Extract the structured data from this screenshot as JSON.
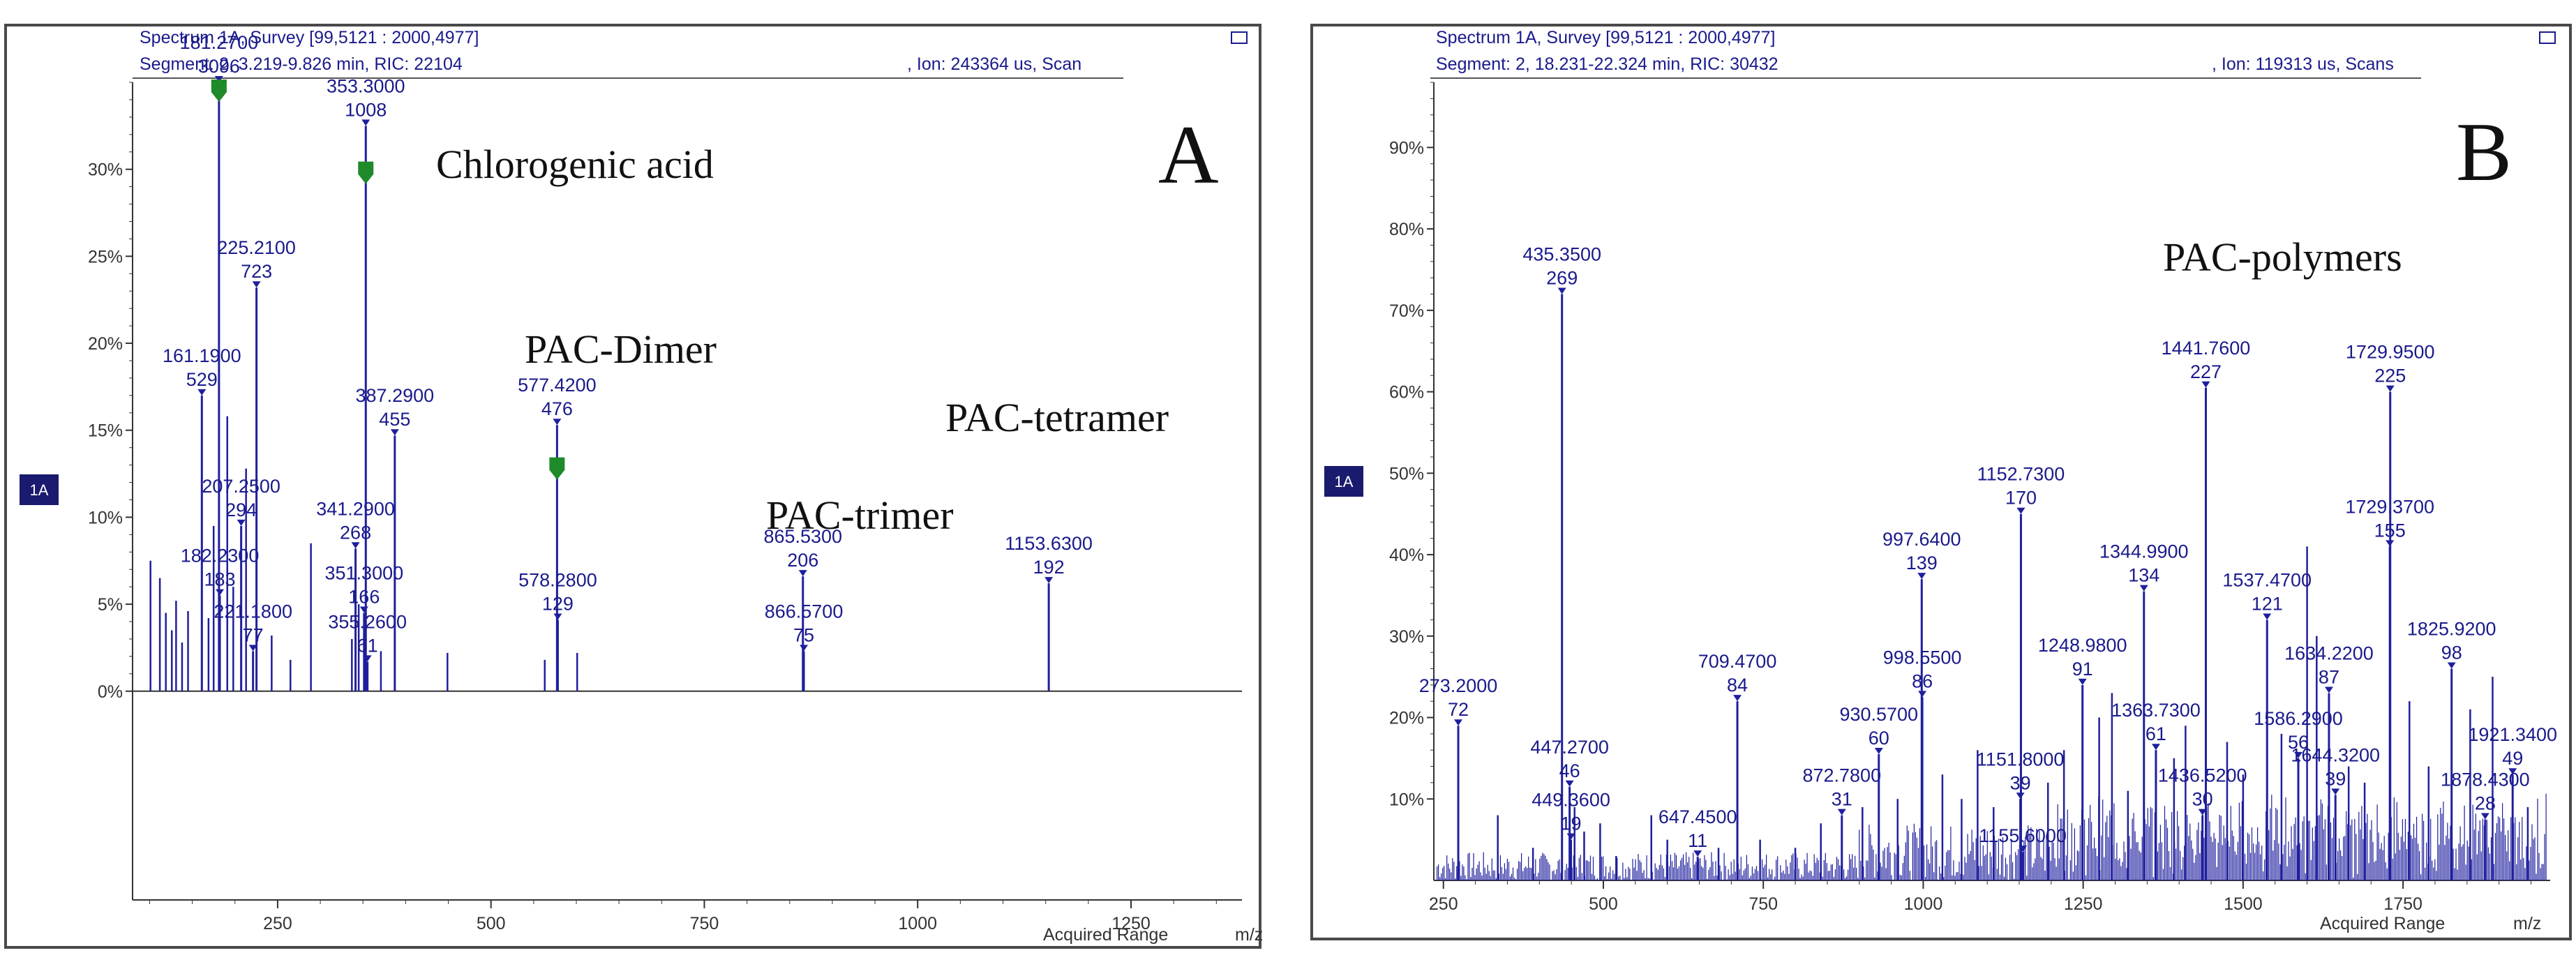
{
  "colors": {
    "peak": "#1f1f9e",
    "marker": "#1f8a2a",
    "badge_bg": "#1a1a6e",
    "frame": "#444444"
  },
  "panels": [
    {
      "letter": "A",
      "badge": "1A",
      "header_line1": "Spectrum 1A, Survey [99,5121 : 2000,4977]",
      "header_line2": "Segment: 2, 3.219-9.826 min, RIC: 22104",
      "header_line2_right": ", Ion: 243364 us, Scan",
      "x_footer": "Acquired Range",
      "x_unit": "m/z",
      "annotations": [
        "Chlorogenic acid",
        "PAC-Dimer",
        "PAC-tetramer",
        "PAC-trimer"
      ]
    },
    {
      "letter": "B",
      "badge": "1A",
      "header_line1": "Spectrum 1A, Survey [99,5121 : 2000,4977]",
      "header_line2": "Segment: 2, 18.231-22.324 min, RIC: 30432",
      "header_line2_right": ", Ion: 119313 us, Scans",
      "x_footer": "Acquired Range",
      "x_unit": "m/z",
      "annotations": [
        "PAC-polymers"
      ]
    }
  ],
  "chart_data": [
    {
      "type": "bar",
      "subtype": "mass-spectrum stick plot",
      "xlabel": "m/z",
      "ylabel": "",
      "xlim": [
        80,
        1380
      ],
      "ylim": [
        -12,
        35
      ],
      "x_ticks": [
        250,
        500,
        750,
        1000,
        1250
      ],
      "x_tick_labels": [
        "250",
        "500",
        "750",
        "1000",
        "1250"
      ],
      "y_ticks": [
        0,
        5,
        10,
        15,
        20,
        25,
        30
      ],
      "y_tick_labels": [
        "0%",
        "5%",
        "10%",
        "15%",
        "20%",
        "25%",
        "30%"
      ],
      "grid": false,
      "marker_positions": [
        181.27,
        353.3,
        577.42
      ],
      "labeled_peaks": [
        {
          "mz": 161.19,
          "intensity": 17.0,
          "label": "161.1900",
          "count": "529"
        },
        {
          "mz": 181.27,
          "intensity": 35.0,
          "label": "181.2700",
          "count": "3096"
        },
        {
          "mz": 182.23,
          "intensity": 5.5,
          "label": "182.2300",
          "count": "183"
        },
        {
          "mz": 207.25,
          "intensity": 9.5,
          "label": "207.2500",
          "count": "294"
        },
        {
          "mz": 221.18,
          "intensity": 2.3,
          "label": "221.1800",
          "count": "77"
        },
        {
          "mz": 225.21,
          "intensity": 23.2,
          "label": "225.2100",
          "count": "723"
        },
        {
          "mz": 341.29,
          "intensity": 8.2,
          "label": "341.2900",
          "count": "268"
        },
        {
          "mz": 351.3,
          "intensity": 4.5,
          "label": "351.3000",
          "count": "166"
        },
        {
          "mz": 353.3,
          "intensity": 32.5,
          "label": "353.3000",
          "count": "1008"
        },
        {
          "mz": 355.26,
          "intensity": 1.7,
          "label": "355.2600",
          "count": "61"
        },
        {
          "mz": 387.29,
          "intensity": 14.7,
          "label": "387.2900",
          "count": "455"
        },
        {
          "mz": 577.42,
          "intensity": 15.3,
          "label": "577.4200",
          "count": "476"
        },
        {
          "mz": 578.28,
          "intensity": 4.1,
          "label": "578.2800",
          "count": "129"
        },
        {
          "mz": 865.53,
          "intensity": 6.6,
          "label": "865.5300",
          "count": "206"
        },
        {
          "mz": 866.57,
          "intensity": 2.3,
          "label": "866.5700",
          "count": "75"
        },
        {
          "mz": 1153.63,
          "intensity": 6.2,
          "label": "1153.6300",
          "count": "192"
        }
      ],
      "minor_peaks": [
        {
          "mz": 101,
          "intensity": 7.5
        },
        {
          "mz": 112,
          "intensity": 6.5
        },
        {
          "mz": 119,
          "intensity": 4.5
        },
        {
          "mz": 126,
          "intensity": 3.5
        },
        {
          "mz": 131,
          "intensity": 5.2
        },
        {
          "mz": 138,
          "intensity": 2.8
        },
        {
          "mz": 145,
          "intensity": 4.6
        },
        {
          "mz": 169,
          "intensity": 4.2
        },
        {
          "mz": 175,
          "intensity": 9.5
        },
        {
          "mz": 191,
          "intensity": 15.8
        },
        {
          "mz": 198,
          "intensity": 6.0
        },
        {
          "mz": 213,
          "intensity": 12.8
        },
        {
          "mz": 243,
          "intensity": 3.2
        },
        {
          "mz": 265,
          "intensity": 1.8
        },
        {
          "mz": 289,
          "intensity": 8.5
        },
        {
          "mz": 337,
          "intensity": 3.0
        },
        {
          "mz": 345,
          "intensity": 5.0
        },
        {
          "mz": 371,
          "intensity": 2.3
        },
        {
          "mz": 449,
          "intensity": 2.2
        },
        {
          "mz": 563,
          "intensity": 1.8
        },
        {
          "mz": 601,
          "intensity": 2.2
        }
      ]
    },
    {
      "type": "bar",
      "subtype": "mass-spectrum stick plot",
      "xlabel": "m/z",
      "ylabel": "",
      "xlim": [
        235,
        1980
      ],
      "ylim": [
        0,
        98
      ],
      "x_ticks": [
        250,
        500,
        750,
        1000,
        1250,
        1500,
        1750
      ],
      "x_tick_labels": [
        "250",
        "500",
        "750",
        "1000",
        "1250",
        "1500",
        "1750"
      ],
      "y_ticks": [
        10,
        20,
        30,
        40,
        50,
        60,
        70,
        80,
        90
      ],
      "y_tick_labels": [
        "10%",
        "20%",
        "30%",
        "40%",
        "50%",
        "60%",
        "70%",
        "80%",
        "90%"
      ],
      "grid": false,
      "labeled_peaks": [
        {
          "mz": 273.2,
          "intensity": 19.0,
          "label": "273.2000",
          "count": "72"
        },
        {
          "mz": 435.35,
          "intensity": 72.0,
          "label": "435.3500",
          "count": "269"
        },
        {
          "mz": 447.27,
          "intensity": 11.5,
          "label": "447.2700",
          "count": "46"
        },
        {
          "mz": 449.36,
          "intensity": 5.0,
          "label": "449.3600",
          "count": "19"
        },
        {
          "mz": 647.45,
          "intensity": 2.9,
          "label": "647.4500",
          "count": "11"
        },
        {
          "mz": 709.47,
          "intensity": 22.0,
          "label": "709.4700",
          "count": "84"
        },
        {
          "mz": 872.78,
          "intensity": 8.0,
          "label": "872.7800",
          "count": "31"
        },
        {
          "mz": 930.57,
          "intensity": 15.5,
          "label": "930.5700",
          "count": "60"
        },
        {
          "mz": 997.64,
          "intensity": 37.0,
          "label": "997.6400",
          "count": "139"
        },
        {
          "mz": 998.55,
          "intensity": 22.5,
          "label": "998.5500",
          "count": "86"
        },
        {
          "mz": 1151.8,
          "intensity": 10.0,
          "label": "1151.8000",
          "count": "39"
        },
        {
          "mz": 1152.73,
          "intensity": 45.0,
          "label": "1152.7300",
          "count": "170"
        },
        {
          "mz": 1155.6,
          "intensity": 3.5,
          "label": "1155.6000",
          "count": ""
        },
        {
          "mz": 1248.98,
          "intensity": 24.0,
          "label": "1248.9800",
          "count": "91"
        },
        {
          "mz": 1344.99,
          "intensity": 35.5,
          "label": "1344.9900",
          "count": "134"
        },
        {
          "mz": 1363.73,
          "intensity": 16.0,
          "label": "1363.7300",
          "count": "61"
        },
        {
          "mz": 1436.52,
          "intensity": 8.0,
          "label": "1436.5200",
          "count": "30"
        },
        {
          "mz": 1441.76,
          "intensity": 60.5,
          "label": "1441.7600",
          "count": "227"
        },
        {
          "mz": 1537.47,
          "intensity": 32.0,
          "label": "1537.4700",
          "count": "121"
        },
        {
          "mz": 1586.29,
          "intensity": 15.0,
          "label": "1586.2900",
          "count": "56"
        },
        {
          "mz": 1634.22,
          "intensity": 23.0,
          "label": "1634.2200",
          "count": "87"
        },
        {
          "mz": 1644.32,
          "intensity": 10.5,
          "label": "1644.3200",
          "count": "39"
        },
        {
          "mz": 1729.37,
          "intensity": 41.0,
          "label": "1729.3700",
          "count": "155"
        },
        {
          "mz": 1729.95,
          "intensity": 60.0,
          "label": "1729.9500",
          "count": "225"
        },
        {
          "mz": 1825.92,
          "intensity": 26.0,
          "label": "1825.9200",
          "count": "98"
        },
        {
          "mz": 1878.43,
          "intensity": 7.5,
          "label": "1878.4300",
          "count": "28"
        },
        {
          "mz": 1921.34,
          "intensity": 13.0,
          "label": "1921.3400",
          "count": "49"
        }
      ],
      "minor_peaks": [
        {
          "mz": 335,
          "intensity": 8
        },
        {
          "mz": 390,
          "intensity": 4
        },
        {
          "mz": 455,
          "intensity": 9
        },
        {
          "mz": 470,
          "intensity": 6
        },
        {
          "mz": 495,
          "intensity": 7
        },
        {
          "mz": 520,
          "intensity": 3
        },
        {
          "mz": 575,
          "intensity": 8
        },
        {
          "mz": 600,
          "intensity": 5
        },
        {
          "mz": 680,
          "intensity": 4
        },
        {
          "mz": 745,
          "intensity": 5
        },
        {
          "mz": 800,
          "intensity": 4
        },
        {
          "mz": 840,
          "intensity": 7
        },
        {
          "mz": 905,
          "intensity": 9
        },
        {
          "mz": 960,
          "intensity": 10
        },
        {
          "mz": 1030,
          "intensity": 13
        },
        {
          "mz": 1060,
          "intensity": 10
        },
        {
          "mz": 1085,
          "intensity": 16
        },
        {
          "mz": 1110,
          "intensity": 9
        },
        {
          "mz": 1195,
          "intensity": 12
        },
        {
          "mz": 1220,
          "intensity": 16
        },
        {
          "mz": 1275,
          "intensity": 20
        },
        {
          "mz": 1295,
          "intensity": 23
        },
        {
          "mz": 1320,
          "intensity": 11
        },
        {
          "mz": 1392,
          "intensity": 15
        },
        {
          "mz": 1410,
          "intensity": 19
        },
        {
          "mz": 1475,
          "intensity": 17
        },
        {
          "mz": 1500,
          "intensity": 13
        },
        {
          "mz": 1560,
          "intensity": 18
        },
        {
          "mz": 1600,
          "intensity": 41
        },
        {
          "mz": 1615,
          "intensity": 30
        },
        {
          "mz": 1665,
          "intensity": 14
        },
        {
          "mz": 1690,
          "intensity": 12
        },
        {
          "mz": 1760,
          "intensity": 22
        },
        {
          "mz": 1790,
          "intensity": 14
        },
        {
          "mz": 1855,
          "intensity": 21
        },
        {
          "mz": 1890,
          "intensity": 25
        },
        {
          "mz": 1945,
          "intensity": 9
        }
      ]
    }
  ]
}
